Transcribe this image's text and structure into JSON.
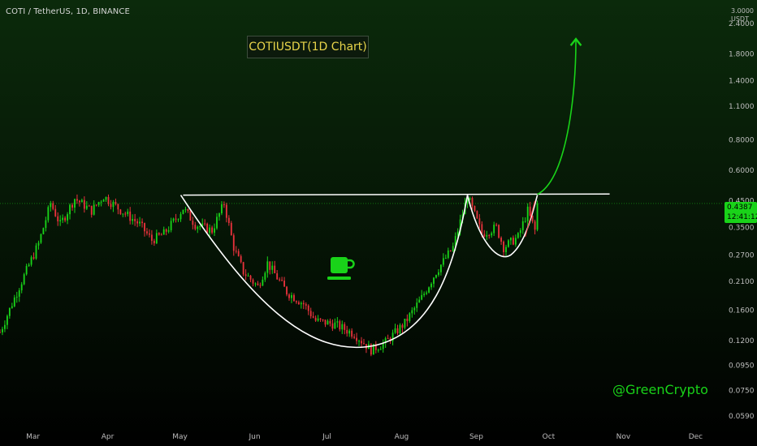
{
  "header": {
    "symbol_line": "COTI / TetherUS, 1D, BINANCE"
  },
  "annotations": {
    "title": "COTIUSDT(1D Chart)",
    "author": "@GreenCrypto",
    "cup_icon": "coffee-cup-icon"
  },
  "price_scale": {
    "unit": "USDT",
    "top_value": "3.0000",
    "current_price": "0.4387",
    "countdown": "12:41:12"
  },
  "colors": {
    "up": "#19d319",
    "down": "#e8323c",
    "price_line": "#19d319",
    "pattern_line": "#ffffff",
    "projection": "#19d319",
    "title_text": "#e8d54a"
  },
  "chart_data": {
    "type": "candlestick",
    "title": "COTIUSDT(1D Chart)",
    "y_scale": "log",
    "y_ticks": [
      0.059,
      0.075,
      0.095,
      0.12,
      0.16,
      0.21,
      0.27,
      0.35,
      0.45,
      0.6,
      0.8,
      1.1,
      1.4,
      1.8,
      2.4
    ],
    "y_tick_labels": [
      "0.0590",
      "0.0750",
      "0.0950",
      "0.1200",
      "0.1600",
      "0.2100",
      "0.2700",
      "0.3500",
      "0.4500",
      "0.6000",
      "0.8000",
      "1.1000",
      "1.4000",
      "1.8000",
      "2.4000"
    ],
    "x_months": [
      {
        "label": "Mar",
        "day": 0
      },
      {
        "label": "Apr",
        "day": 31
      },
      {
        "label": "May",
        "day": 61
      },
      {
        "label": "Jun",
        "day": 92
      },
      {
        "label": "Jul",
        "day": 122
      },
      {
        "label": "Aug",
        "day": 153
      },
      {
        "label": "Sep",
        "day": 184
      },
      {
        "label": "Oct",
        "day": 214
      },
      {
        "label": "Nov",
        "day": 245
      },
      {
        "label": "Dec",
        "day": 275
      }
    ],
    "day_range": [
      -13,
      287
    ],
    "y_range": [
      0.055,
      3.0
    ],
    "current_price": 0.4387,
    "key_points": [
      {
        "day": -13,
        "price": 0.13
      },
      {
        "day": -5,
        "price": 0.2
      },
      {
        "day": 3,
        "price": 0.3
      },
      {
        "day": 8,
        "price": 0.44
      },
      {
        "day": 12,
        "price": 0.36
      },
      {
        "day": 18,
        "price": 0.46
      },
      {
        "day": 25,
        "price": 0.41
      },
      {
        "day": 30,
        "price": 0.47
      },
      {
        "day": 36,
        "price": 0.42
      },
      {
        "day": 45,
        "price": 0.36
      },
      {
        "day": 50,
        "price": 0.31
      },
      {
        "day": 55,
        "price": 0.33
      },
      {
        "day": 60,
        "price": 0.38
      },
      {
        "day": 63,
        "price": 0.42
      },
      {
        "day": 68,
        "price": 0.36
      },
      {
        "day": 75,
        "price": 0.34
      },
      {
        "day": 80,
        "price": 0.44
      },
      {
        "day": 84,
        "price": 0.29
      },
      {
        "day": 88,
        "price": 0.23
      },
      {
        "day": 94,
        "price": 0.2
      },
      {
        "day": 98,
        "price": 0.25
      },
      {
        "day": 106,
        "price": 0.19
      },
      {
        "day": 113,
        "price": 0.17
      },
      {
        "day": 118,
        "price": 0.145
      },
      {
        "day": 126,
        "price": 0.14
      },
      {
        "day": 134,
        "price": 0.128
      },
      {
        "day": 141,
        "price": 0.11
      },
      {
        "day": 147,
        "price": 0.118
      },
      {
        "day": 155,
        "price": 0.142
      },
      {
        "day": 162,
        "price": 0.18
      },
      {
        "day": 168,
        "price": 0.23
      },
      {
        "day": 175,
        "price": 0.29
      },
      {
        "day": 181,
        "price": 0.47
      },
      {
        "day": 187,
        "price": 0.33
      },
      {
        "day": 193,
        "price": 0.35
      },
      {
        "day": 196,
        "price": 0.29
      },
      {
        "day": 202,
        "price": 0.32
      },
      {
        "day": 206,
        "price": 0.41
      },
      {
        "day": 209,
        "price": 0.34
      },
      {
        "day": 210,
        "price": 0.4387
      }
    ]
  }
}
